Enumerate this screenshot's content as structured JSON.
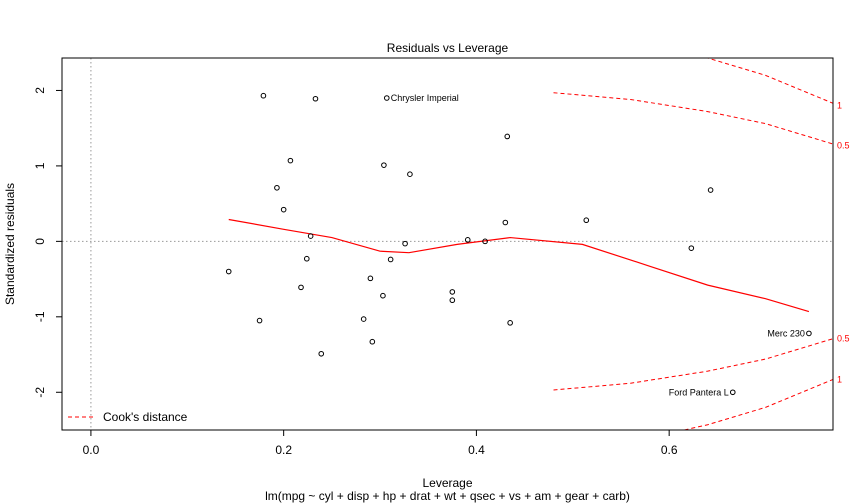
{
  "chart_data": {
    "type": "scatter",
    "title": "Residuals vs Leverage",
    "xlabel": "Leverage",
    "subtitle": "lm(mpg ~ cyl + disp + hp + drat + wt + qsec + vs + am + gear + carb)",
    "ylabel": "Standardized residuals",
    "xlim": [
      -0.03,
      0.77
    ],
    "ylim": [
      -2.5,
      2.43
    ],
    "xticks": [
      0.0,
      0.2,
      0.4,
      0.6
    ],
    "xtick_labels": [
      "0.0",
      "0.2",
      "0.4",
      "0.6"
    ],
    "yticks": [
      -2,
      -1,
      0,
      1,
      2
    ],
    "ytick_labels": [
      "-2",
      "-1",
      "0",
      "1",
      "2"
    ],
    "reference_lines": {
      "x": 0,
      "y": 0
    },
    "points": [
      {
        "x": 0.143,
        "y": -0.4
      },
      {
        "x": 0.175,
        "y": -1.05
      },
      {
        "x": 0.179,
        "y": 1.93
      },
      {
        "x": 0.193,
        "y": 0.71
      },
      {
        "x": 0.2,
        "y": 0.42
      },
      {
        "x": 0.207,
        "y": 1.07
      },
      {
        "x": 0.218,
        "y": -0.61
      },
      {
        "x": 0.224,
        "y": -0.23
      },
      {
        "x": 0.228,
        "y": 0.07
      },
      {
        "x": 0.233,
        "y": 1.89
      },
      {
        "x": 0.239,
        "y": -1.49
      },
      {
        "x": 0.283,
        "y": -1.03
      },
      {
        "x": 0.29,
        "y": -0.49
      },
      {
        "x": 0.292,
        "y": -1.33
      },
      {
        "x": 0.303,
        "y": -0.72
      },
      {
        "x": 0.304,
        "y": 1.01
      },
      {
        "x": 0.307,
        "y": 1.9,
        "label": "Chrysler Imperial"
      },
      {
        "x": 0.311,
        "y": -0.24
      },
      {
        "x": 0.326,
        "y": -0.03
      },
      {
        "x": 0.331,
        "y": 0.89
      },
      {
        "x": 0.375,
        "y": -0.67
      },
      {
        "x": 0.375,
        "y": -0.78
      },
      {
        "x": 0.391,
        "y": 0.02
      },
      {
        "x": 0.409,
        "y": 0.0
      },
      {
        "x": 0.43,
        "y": 0.25
      },
      {
        "x": 0.432,
        "y": 1.39
      },
      {
        "x": 0.435,
        "y": -1.08
      },
      {
        "x": 0.514,
        "y": 0.28
      },
      {
        "x": 0.623,
        "y": -0.09
      },
      {
        "x": 0.643,
        "y": 0.68
      },
      {
        "x": 0.666,
        "y": -2.0,
        "label": "Ford Pantera L"
      },
      {
        "x": 0.745,
        "y": -1.22,
        "label": "Merc 230"
      }
    ],
    "smooth_line": {
      "x": [
        0.143,
        0.2,
        0.25,
        0.3,
        0.33,
        0.38,
        0.435,
        0.51,
        0.58,
        0.64,
        0.7,
        0.745
      ],
      "y": [
        0.29,
        0.16,
        0.05,
        -0.13,
        -0.15,
        -0.04,
        0.05,
        -0.04,
        -0.33,
        -0.58,
        -0.76,
        -0.93
      ]
    },
    "cooks_contours": [
      {
        "label": "1",
        "level": 1,
        "x": [
          0.48,
          0.56,
          0.64,
          0.7,
          0.77
        ],
        "y_upper": [
          2.8,
          2.66,
          2.43,
          2.2,
          1.83
        ]
      },
      {
        "label": "0.5",
        "level": 0.5,
        "x": [
          0.48,
          0.56,
          0.64,
          0.7,
          0.77
        ],
        "y_upper": [
          1.97,
          1.88,
          1.72,
          1.56,
          1.29
        ]
      }
    ],
    "contour_labels": [
      "1",
      "0.5",
      "0.5",
      "1"
    ],
    "legend": {
      "position": "bottom-left",
      "entries": [
        "Cook's distance"
      ]
    },
    "colors": {
      "points": "#000000",
      "smooth": "#ff0000",
      "cooks": "#ff0000",
      "reference": "#999999"
    }
  }
}
